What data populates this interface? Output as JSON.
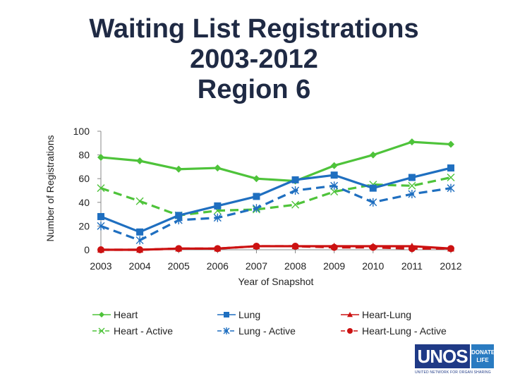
{
  "title_lines": [
    "Waiting List Registrations",
    "2003-2012",
    "Region 6"
  ],
  "logo": {
    "name": "UNOS",
    "badge_line1": "DONATE",
    "badge_line2": "LIFE",
    "tagline": "UNITED NETWORK FOR ORGAN SHARING"
  },
  "chart_data": {
    "type": "line",
    "xlabel": "Year of Snapshot",
    "ylabel": "Number of Registrations",
    "ylim": [
      0,
      100
    ],
    "yticks": [
      0,
      20,
      40,
      60,
      80,
      100
    ],
    "categories": [
      "2003",
      "2004",
      "2005",
      "2006",
      "2007",
      "2008",
      "2009",
      "2010",
      "2011",
      "2012"
    ],
    "grid": false,
    "legend_position": "bottom",
    "series": [
      {
        "name": "Heart",
        "color": "#4ec33a",
        "dash": false,
        "marker": "diamond",
        "values": [
          78,
          75,
          68,
          69,
          60,
          58,
          71,
          80,
          91,
          89
        ]
      },
      {
        "name": "Heart - Active",
        "color": "#4ec33a",
        "dash": true,
        "marker": "x",
        "values": [
          52,
          41,
          29,
          33,
          34,
          38,
          49,
          55,
          54,
          61
        ]
      },
      {
        "name": "Lung",
        "color": "#1f6fc0",
        "dash": false,
        "marker": "square",
        "values": [
          28,
          15,
          29,
          37,
          45,
          59,
          63,
          52,
          61,
          69
        ]
      },
      {
        "name": "Lung - Active",
        "color": "#1f6fc0",
        "dash": true,
        "marker": "star",
        "values": [
          20,
          8,
          25,
          27,
          35,
          50,
          54,
          40,
          47,
          52
        ]
      },
      {
        "name": "Heart-Lung",
        "color": "#cc1111",
        "dash": false,
        "marker": "triangle",
        "values": [
          0,
          0,
          1,
          1,
          3,
          3,
          3,
          3,
          3,
          1
        ]
      },
      {
        "name": "Heart-Lung - Active",
        "color": "#cc1111",
        "dash": true,
        "marker": "circle",
        "values": [
          0,
          0,
          1,
          1,
          3,
          3,
          2,
          2,
          1,
          1
        ]
      }
    ]
  }
}
